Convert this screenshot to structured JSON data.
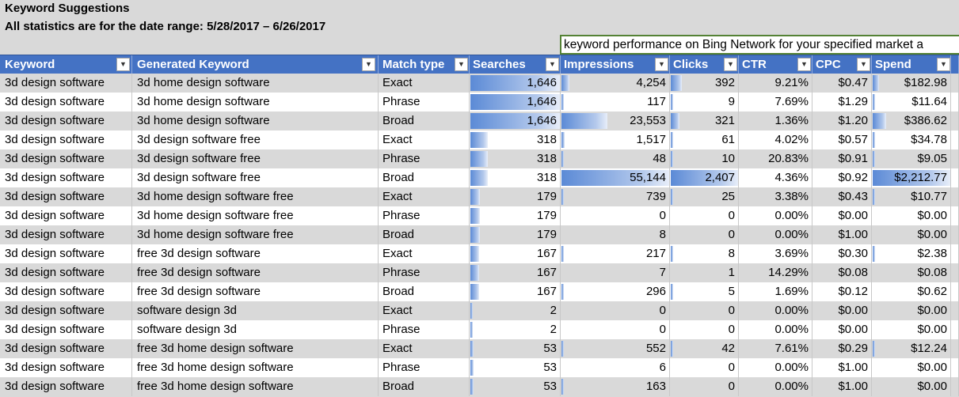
{
  "sheet": {
    "title": "Keyword Suggestions",
    "subtitle": "All statistics are for the date range: 5/28/2017 – 6/26/2017",
    "note": "keyword performance on Bing Network for your specified market a"
  },
  "columns": {
    "keyword": "Keyword",
    "generated": "Generated Keyword",
    "match": "Match type",
    "searches": "Searches",
    "impressions": "Impressions",
    "clicks": "Clicks",
    "ctr": "CTR",
    "cpc": "CPC",
    "spend": "Spend"
  },
  "dropdown_glyph": "▼",
  "data_bar_color": "#5b8ad6",
  "rows": [
    {
      "keyword": "3d design software",
      "generated": "3d home design software",
      "match": "Exact",
      "searches": "1,646",
      "impressions": "4,254",
      "clicks": "392",
      "ctr": "9.21%",
      "cpc": "$0.47",
      "spend": "$182.98",
      "bars": {
        "searches": 1.0,
        "impressions": 0.077,
        "clicks": 0.163,
        "spend": 0.083
      }
    },
    {
      "keyword": "3d design software",
      "generated": "3d home design software",
      "match": "Phrase",
      "searches": "1,646",
      "impressions": "117",
      "clicks": "9",
      "ctr": "7.69%",
      "cpc": "$1.29",
      "spend": "$11.64",
      "bars": {
        "searches": 1.0,
        "impressions": 0.002,
        "clicks": 0.004,
        "spend": 0.005
      }
    },
    {
      "keyword": "3d design software",
      "generated": "3d home design software",
      "match": "Broad",
      "searches": "1,646",
      "impressions": "23,553",
      "clicks": "321",
      "ctr": "1.36%",
      "cpc": "$1.20",
      "spend": "$386.62",
      "bars": {
        "searches": 1.0,
        "impressions": 0.427,
        "clicks": 0.133,
        "spend": 0.175
      }
    },
    {
      "keyword": "3d design software",
      "generated": "3d design software free",
      "match": "Exact",
      "searches": "318",
      "impressions": "1,517",
      "clicks": "61",
      "ctr": "4.02%",
      "cpc": "$0.57",
      "spend": "$34.78",
      "bars": {
        "searches": 0.193,
        "impressions": 0.028,
        "clicks": 0.025,
        "spend": 0.016
      }
    },
    {
      "keyword": "3d design software",
      "generated": "3d design software free",
      "match": "Phrase",
      "searches": "318",
      "impressions": "48",
      "clicks": "10",
      "ctr": "20.83%",
      "cpc": "$0.91",
      "spend": "$9.05",
      "bars": {
        "searches": 0.193,
        "impressions": 0.001,
        "clicks": 0.004,
        "spend": 0.004
      }
    },
    {
      "keyword": "3d design software",
      "generated": "3d design software free",
      "match": "Broad",
      "searches": "318",
      "impressions": "55,144",
      "clicks": "2,407",
      "ctr": "4.36%",
      "cpc": "$0.92",
      "spend": "$2,212.77",
      "bars": {
        "searches": 0.193,
        "impressions": 1.0,
        "clicks": 1.0,
        "spend": 1.0
      }
    },
    {
      "keyword": "3d design software",
      "generated": "3d home design software free",
      "match": "Exact",
      "searches": "179",
      "impressions": "739",
      "clicks": "25",
      "ctr": "3.38%",
      "cpc": "$0.43",
      "spend": "$10.77",
      "bars": {
        "searches": 0.109,
        "impressions": 0.013,
        "clicks": 0.01,
        "spend": 0.005
      }
    },
    {
      "keyword": "3d design software",
      "generated": "3d home design software free",
      "match": "Phrase",
      "searches": "179",
      "impressions": "0",
      "clicks": "0",
      "ctr": "0.00%",
      "cpc": "$0.00",
      "spend": "$0.00",
      "bars": {
        "searches": 0.109,
        "impressions": 0,
        "clicks": 0,
        "spend": 0
      }
    },
    {
      "keyword": "3d design software",
      "generated": "3d home design software free",
      "match": "Broad",
      "searches": "179",
      "impressions": "8",
      "clicks": "0",
      "ctr": "0.00%",
      "cpc": "$1.00",
      "spend": "$0.00",
      "bars": {
        "searches": 0.109,
        "impressions": 0,
        "clicks": 0,
        "spend": 0
      }
    },
    {
      "keyword": "3d design software",
      "generated": "free 3d design software",
      "match": "Exact",
      "searches": "167",
      "impressions": "217",
      "clicks": "8",
      "ctr": "3.69%",
      "cpc": "$0.30",
      "spend": "$2.38",
      "bars": {
        "searches": 0.101,
        "impressions": 0.004,
        "clicks": 0.003,
        "spend": 0.001
      }
    },
    {
      "keyword": "3d design software",
      "generated": "free 3d design software",
      "match": "Phrase",
      "searches": "167",
      "impressions": "7",
      "clicks": "1",
      "ctr": "14.29%",
      "cpc": "$0.08",
      "spend": "$0.08",
      "bars": {
        "searches": 0.101,
        "impressions": 0,
        "clicks": 0,
        "spend": 0
      }
    },
    {
      "keyword": "3d design software",
      "generated": "free 3d design software",
      "match": "Broad",
      "searches": "167",
      "impressions": "296",
      "clicks": "5",
      "ctr": "1.69%",
      "cpc": "$0.12",
      "spend": "$0.62",
      "bars": {
        "searches": 0.101,
        "impressions": 0.005,
        "clicks": 0.002,
        "spend": 0
      }
    },
    {
      "keyword": "3d design software",
      "generated": "software design 3d",
      "match": "Exact",
      "searches": "2",
      "impressions": "0",
      "clicks": "0",
      "ctr": "0.00%",
      "cpc": "$0.00",
      "spend": "$0.00",
      "bars": {
        "searches": 0.001,
        "impressions": 0,
        "clicks": 0,
        "spend": 0
      }
    },
    {
      "keyword": "3d design software",
      "generated": "software design 3d",
      "match": "Phrase",
      "searches": "2",
      "impressions": "0",
      "clicks": "0",
      "ctr": "0.00%",
      "cpc": "$0.00",
      "spend": "$0.00",
      "bars": {
        "searches": 0.001,
        "impressions": 0,
        "clicks": 0,
        "spend": 0
      }
    },
    {
      "keyword": "3d design software",
      "generated": "free 3d home design software",
      "match": "Exact",
      "searches": "53",
      "impressions": "552",
      "clicks": "42",
      "ctr": "7.61%",
      "cpc": "$0.29",
      "spend": "$12.24",
      "bars": {
        "searches": 0.032,
        "impressions": 0.01,
        "clicks": 0.017,
        "spend": 0.006
      }
    },
    {
      "keyword": "3d design software",
      "generated": "free 3d home design software",
      "match": "Phrase",
      "searches": "53",
      "impressions": "6",
      "clicks": "0",
      "ctr": "0.00%",
      "cpc": "$1.00",
      "spend": "$0.00",
      "bars": {
        "searches": 0.032,
        "impressions": 0,
        "clicks": 0,
        "spend": 0
      }
    },
    {
      "keyword": "3d design software",
      "generated": "free 3d home design software",
      "match": "Broad",
      "searches": "53",
      "impressions": "163",
      "clicks": "0",
      "ctr": "0.00%",
      "cpc": "$1.00",
      "spend": "$0.00",
      "bars": {
        "searches": 0.032,
        "impressions": 0.003,
        "clicks": 0,
        "spend": 0
      }
    }
  ]
}
